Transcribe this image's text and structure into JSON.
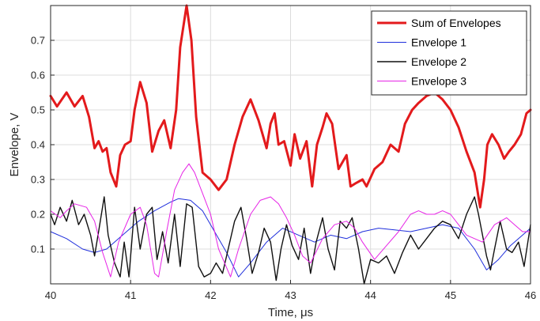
{
  "chart_data": {
    "type": "line",
    "title": "",
    "xlabel": "Time, μs",
    "ylabel": "Envelope, V",
    "xlim": [
      40,
      46
    ],
    "ylim": [
      0,
      0.8
    ],
    "xticks": [
      40,
      41,
      42,
      43,
      44,
      45,
      46
    ],
    "yticks": [
      0.1,
      0.2,
      0.3,
      0.4,
      0.5,
      0.6,
      0.7
    ],
    "grid": true,
    "legend_position": "top-right",
    "series": [
      {
        "name": "Sum of Envelopes",
        "color": "#e31a1c",
        "x": [
          40.0,
          40.08,
          40.2,
          40.3,
          40.4,
          40.48,
          40.55,
          40.6,
          40.65,
          40.7,
          40.75,
          40.82,
          40.87,
          40.93,
          41.0,
          41.05,
          41.12,
          41.2,
          41.27,
          41.35,
          41.42,
          41.5,
          41.57,
          41.62,
          41.7,
          41.76,
          41.82,
          41.9,
          42.0,
          42.1,
          42.2,
          42.3,
          42.4,
          42.5,
          42.6,
          42.7,
          42.75,
          42.8,
          42.85,
          42.92,
          43.0,
          43.05,
          43.12,
          43.2,
          43.27,
          43.33,
          43.4,
          43.45,
          43.52,
          43.6,
          43.7,
          43.75,
          43.82,
          43.9,
          43.95,
          44.05,
          44.15,
          44.25,
          44.35,
          44.43,
          44.52,
          44.6,
          44.7,
          44.8,
          44.9,
          45.0,
          45.1,
          45.2,
          45.3,
          45.37,
          45.42,
          45.46,
          45.52,
          45.6,
          45.67,
          45.73,
          45.8,
          45.88,
          45.95,
          46.0
        ],
        "y": [
          0.54,
          0.51,
          0.55,
          0.51,
          0.54,
          0.48,
          0.39,
          0.41,
          0.38,
          0.39,
          0.32,
          0.28,
          0.37,
          0.4,
          0.41,
          0.5,
          0.58,
          0.52,
          0.38,
          0.44,
          0.47,
          0.39,
          0.5,
          0.68,
          0.8,
          0.7,
          0.48,
          0.32,
          0.3,
          0.27,
          0.3,
          0.4,
          0.48,
          0.53,
          0.47,
          0.39,
          0.46,
          0.49,
          0.4,
          0.41,
          0.34,
          0.43,
          0.36,
          0.41,
          0.28,
          0.4,
          0.45,
          0.49,
          0.46,
          0.33,
          0.37,
          0.28,
          0.29,
          0.3,
          0.28,
          0.33,
          0.35,
          0.4,
          0.38,
          0.46,
          0.5,
          0.52,
          0.54,
          0.55,
          0.53,
          0.5,
          0.45,
          0.38,
          0.32,
          0.22,
          0.3,
          0.4,
          0.43,
          0.4,
          0.36,
          0.38,
          0.4,
          0.43,
          0.49,
          0.5
        ],
        "width": 3
      },
      {
        "name": "Envelope 1",
        "color": "#1f2fdc",
        "x": [
          40.0,
          40.2,
          40.4,
          40.55,
          40.7,
          40.9,
          41.1,
          41.3,
          41.5,
          41.6,
          41.75,
          41.9,
          42.05,
          42.2,
          42.35,
          42.5,
          42.7,
          42.9,
          43.1,
          43.3,
          43.5,
          43.7,
          43.9,
          44.1,
          44.3,
          44.5,
          44.7,
          44.9,
          45.1,
          45.3,
          45.45,
          45.6,
          45.75,
          45.9,
          46.0
        ],
        "y": [
          0.15,
          0.13,
          0.1,
          0.09,
          0.1,
          0.14,
          0.18,
          0.21,
          0.235,
          0.245,
          0.24,
          0.21,
          0.15,
          0.09,
          0.02,
          0.06,
          0.12,
          0.16,
          0.14,
          0.12,
          0.14,
          0.13,
          0.15,
          0.16,
          0.155,
          0.15,
          0.16,
          0.17,
          0.16,
          0.1,
          0.04,
          0.07,
          0.11,
          0.14,
          0.16
        ],
        "width": 1
      },
      {
        "name": "Envelope 2",
        "color": "#111111",
        "x": [
          40.0,
          40.05,
          40.12,
          40.2,
          40.27,
          40.35,
          40.42,
          40.5,
          40.55,
          40.6,
          40.67,
          40.72,
          40.8,
          40.87,
          40.92,
          40.98,
          41.05,
          41.12,
          41.2,
          41.27,
          41.33,
          41.4,
          41.47,
          41.55,
          41.62,
          41.7,
          41.77,
          41.85,
          41.92,
          42.0,
          42.07,
          42.15,
          42.22,
          42.3,
          42.38,
          42.45,
          42.52,
          42.6,
          42.67,
          42.75,
          42.82,
          42.88,
          42.95,
          43.02,
          43.1,
          43.17,
          43.25,
          43.32,
          43.4,
          43.47,
          43.55,
          43.62,
          43.7,
          43.77,
          43.85,
          43.92,
          44.0,
          44.1,
          44.2,
          44.3,
          44.4,
          44.5,
          44.6,
          44.7,
          44.8,
          44.9,
          45.0,
          45.1,
          45.2,
          45.3,
          45.35,
          45.45,
          45.5,
          45.55,
          45.62,
          45.7,
          45.77,
          45.85,
          45.92,
          46.0
        ],
        "y": [
          0.2,
          0.17,
          0.22,
          0.18,
          0.24,
          0.17,
          0.2,
          0.14,
          0.08,
          0.15,
          0.25,
          0.14,
          0.06,
          0.02,
          0.12,
          0.02,
          0.22,
          0.1,
          0.2,
          0.22,
          0.07,
          0.15,
          0.06,
          0.2,
          0.05,
          0.23,
          0.22,
          0.05,
          0.02,
          0.03,
          0.06,
          0.03,
          0.1,
          0.18,
          0.22,
          0.13,
          0.03,
          0.09,
          0.16,
          0.12,
          0.01,
          0.1,
          0.17,
          0.11,
          0.07,
          0.16,
          0.03,
          0.12,
          0.19,
          0.1,
          0.04,
          0.18,
          0.16,
          0.19,
          0.1,
          0.0,
          0.07,
          0.06,
          0.08,
          0.03,
          0.09,
          0.14,
          0.1,
          0.13,
          0.16,
          0.18,
          0.17,
          0.13,
          0.2,
          0.25,
          0.2,
          0.08,
          0.04,
          0.1,
          0.18,
          0.1,
          0.09,
          0.12,
          0.05,
          0.17
        ],
        "width": 1.4
      },
      {
        "name": "Envelope 3",
        "color": "#e623e6",
        "x": [
          40.0,
          40.12,
          40.2,
          40.3,
          40.45,
          40.55,
          40.65,
          40.75,
          40.85,
          41.0,
          41.12,
          41.2,
          41.3,
          41.35,
          41.45,
          41.55,
          41.65,
          41.73,
          41.8,
          41.9,
          42.0,
          42.1,
          42.25,
          42.35,
          42.5,
          42.62,
          42.75,
          42.85,
          42.95,
          43.05,
          43.15,
          43.25,
          43.4,
          43.55,
          43.7,
          43.8,
          43.9,
          44.05,
          44.2,
          44.35,
          44.5,
          44.6,
          44.7,
          44.8,
          44.9,
          45.0,
          45.1,
          45.2,
          45.3,
          45.4,
          45.55,
          45.7,
          45.8,
          45.9,
          46.0
        ],
        "y": [
          0.21,
          0.19,
          0.21,
          0.23,
          0.22,
          0.18,
          0.09,
          0.02,
          0.12,
          0.2,
          0.22,
          0.17,
          0.03,
          0.02,
          0.15,
          0.27,
          0.32,
          0.345,
          0.32,
          0.26,
          0.2,
          0.1,
          0.02,
          0.1,
          0.2,
          0.24,
          0.25,
          0.23,
          0.19,
          0.14,
          0.08,
          0.06,
          0.13,
          0.17,
          0.18,
          0.16,
          0.12,
          0.07,
          0.11,
          0.15,
          0.2,
          0.21,
          0.2,
          0.2,
          0.21,
          0.2,
          0.17,
          0.14,
          0.13,
          0.12,
          0.17,
          0.19,
          0.17,
          0.15,
          0.15
        ],
        "width": 1
      }
    ]
  }
}
